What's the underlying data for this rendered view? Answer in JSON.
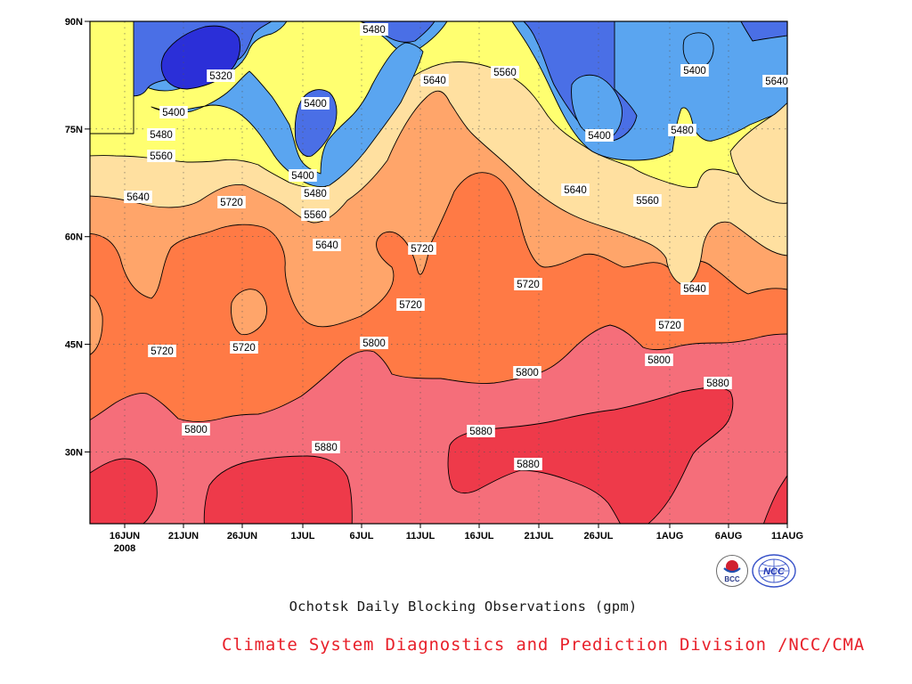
{
  "chart_data": {
    "type": "contour",
    "title": "",
    "xlabel": "",
    "ylabel": "",
    "x_ticks": [
      "16JUN",
      "21JUN",
      "26JUN",
      "1JUL",
      "6JUL",
      "11JUL",
      "16JUL",
      "21JUL",
      "26JUL",
      "1AUG",
      "6AUG",
      "11AUG"
    ],
    "x_year_label": "2008",
    "y_ticks": [
      "30N",
      "45N",
      "60N",
      "75N",
      "90N"
    ],
    "y_values": [
      30,
      45,
      60,
      75,
      90
    ],
    "ylim_deg": [
      20,
      90
    ],
    "grid": true,
    "levels": [
      5320,
      5400,
      5480,
      5560,
      5640,
      5720,
      5800,
      5880
    ],
    "fill_colors": {
      "lt5320": "#2b2fd8",
      "5320_5400": "#4a6fe6",
      "5400_5480": "#5aa5f0",
      "5480_5560": "#ffff70",
      "5560_5640": "#ffe0a0",
      "5640_5720": "#ffa56a",
      "5720_5800": "#ff7a45",
      "5800_5880": "#f56e7a",
      "gt5880": "#ee3a4a"
    },
    "contour_labels": [
      {
        "text": "5480"
      },
      {
        "text": "5560"
      },
      {
        "text": "5640"
      },
      {
        "text": "5320"
      },
      {
        "text": "5400"
      },
      {
        "text": "5400"
      },
      {
        "text": "5400"
      },
      {
        "text": "5400"
      },
      {
        "text": "5400"
      },
      {
        "text": "5480"
      },
      {
        "text": "5480"
      },
      {
        "text": "5480"
      },
      {
        "text": "5560"
      },
      {
        "text": "5560"
      },
      {
        "text": "5560"
      },
      {
        "text": "5640"
      },
      {
        "text": "5640"
      },
      {
        "text": "5640"
      },
      {
        "text": "5640"
      },
      {
        "text": "5640"
      },
      {
        "text": "5720"
      },
      {
        "text": "5720"
      },
      {
        "text": "5720"
      },
      {
        "text": "5720"
      },
      {
        "text": "5720"
      },
      {
        "text": "5720"
      },
      {
        "text": "5720"
      },
      {
        "text": "5800"
      },
      {
        "text": "5800"
      },
      {
        "text": "5800"
      },
      {
        "text": "5800"
      },
      {
        "text": "5880"
      },
      {
        "text": "5880"
      },
      {
        "text": "5880"
      },
      {
        "text": "5880"
      }
    ]
  },
  "captions": {
    "main": "Ochotsk Daily Blocking Observations (gpm)",
    "credit": "Climate System Diagnostics and Prediction Division /NCC/CMA"
  },
  "logos": {
    "bcc": "BCC",
    "ncc": "NCC"
  }
}
